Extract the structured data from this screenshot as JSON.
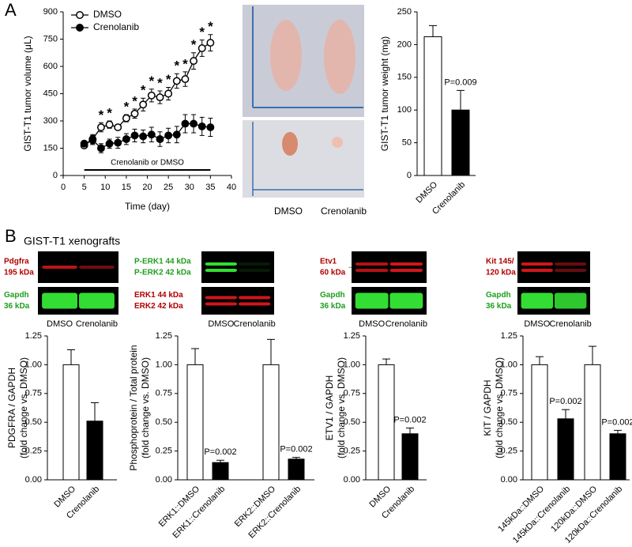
{
  "panels": {
    "a": "A",
    "b": "B",
    "b_title": "GIST-T1 xenografts"
  },
  "photos": {
    "lanes": [
      "DMSO",
      "Crenolanib"
    ]
  },
  "blots": [
    {
      "rows": [
        {
          "labels": [
            "Pdgfra",
            "195 kDa"
          ],
          "color": "#d0161a",
          "label_color": "#b00000"
        },
        {
          "labels": [
            "Gapdh",
            "36 kDa"
          ],
          "color": "#33dd33",
          "label_color": "#1f9e1f"
        }
      ],
      "lanes": [
        "DMSO",
        "Crenolanib"
      ]
    },
    {
      "rows": [
        {
          "labels": [
            "P-ERK1 44 kDa",
            "P-ERK2 42 kDa"
          ],
          "color": "#33dd33",
          "label_color": "#1f9e1f"
        },
        {
          "labels": [
            "ERK1 44 kDa",
            "ERK2 42 kDa"
          ],
          "color": "#d0161a",
          "label_color": "#b00000"
        }
      ],
      "lanes": [
        "DMSO",
        "Crenolanib"
      ]
    },
    {
      "rows": [
        {
          "labels": [
            "Etv1",
            "60 kDa"
          ],
          "color": "#d0161a",
          "label_color": "#b00000"
        },
        {
          "labels": [
            "Gapdh",
            "36 kDa"
          ],
          "color": "#33dd33",
          "label_color": "#1f9e1f"
        }
      ],
      "lanes": [
        "DMSO",
        "Crenolanib"
      ]
    },
    {
      "rows": [
        {
          "labels": [
            "Kit 145/",
            "120 kDa"
          ],
          "color": "#d0161a",
          "label_color": "#b00000"
        },
        {
          "labels": [
            "Gapdh",
            "36 kDa"
          ],
          "color": "#33dd33",
          "label_color": "#1f9e1f"
        }
      ],
      "lanes": [
        "DMSO",
        "Crenolanib"
      ]
    }
  ],
  "chart_data": [
    {
      "type": "line",
      "xlabel": "Time (day)",
      "ylabel": [
        "GIST-T1 tumor volume (μL)"
      ],
      "x": [
        5,
        7,
        9,
        11,
        13,
        15,
        17,
        19,
        21,
        23,
        25,
        27,
        29,
        31,
        33,
        35
      ],
      "series": [
        {
          "name": "DMSO",
          "color": "#000000",
          "marker_fill": "#ffffff",
          "values": [
            165,
            200,
            265,
            280,
            265,
            315,
            340,
            390,
            440,
            430,
            450,
            520,
            530,
            630,
            700,
            730
          ],
          "errors": [
            15,
            25,
            25,
            20,
            15,
            20,
            25,
            35,
            35,
            35,
            35,
            40,
            40,
            45,
            45,
            45
          ],
          "significance": [
            null,
            null,
            "*",
            "*",
            null,
            "*",
            "*",
            "*",
            "*",
            "*",
            "*",
            "*",
            "*",
            "*",
            "*",
            "*"
          ]
        },
        {
          "name": "Crenolanib",
          "color": "#000000",
          "marker_fill": "#000000",
          "values": [
            175,
            195,
            150,
            175,
            180,
            200,
            220,
            215,
            225,
            200,
            220,
            225,
            285,
            285,
            270,
            265
          ],
          "errors": [
            15,
            25,
            25,
            25,
            30,
            30,
            35,
            35,
            40,
            40,
            40,
            45,
            50,
            50,
            50,
            50
          ]
        }
      ],
      "treatment": {
        "label": "Crenolanib or DMSO",
        "range": [
          5,
          35
        ]
      },
      "xlim": [
        0,
        40
      ],
      "xticks": [
        0,
        5,
        10,
        15,
        20,
        25,
        30,
        35,
        40
      ],
      "ylim": [
        0,
        900
      ],
      "yticks": [
        0,
        150,
        300,
        450,
        600,
        750,
        900
      ],
      "legend": "upper-left"
    },
    {
      "type": "bar",
      "ylabel": [
        "GIST-T1 tumor weight (mg)"
      ],
      "categories": [
        "DMSO",
        "Crenolanib"
      ],
      "values": [
        212,
        100
      ],
      "errors": [
        17,
        30
      ],
      "colors": [
        "#ffffff",
        "#000000"
      ],
      "p_values": [
        null,
        "P=0.009"
      ],
      "ylim": [
        0,
        250
      ],
      "yticks": [
        0,
        50,
        100,
        150,
        200,
        250
      ]
    },
    {
      "type": "bar",
      "ylabel": [
        "PDGFRA / GAPDH",
        "(fold change vs. DMSO)"
      ],
      "categories": [
        "DMSO",
        "Crenolanib"
      ],
      "values": [
        1.0,
        0.51
      ],
      "errors": [
        0.13,
        0.16
      ],
      "colors": [
        "#ffffff",
        "#000000"
      ],
      "p_values": [
        null,
        null
      ],
      "ylim": [
        0,
        1.25
      ],
      "yticks": [
        {
          "value": 0,
          "label": "0.00"
        },
        {
          "value": 0.25,
          "label": "0.25"
        },
        {
          "value": 0.5,
          "label": "0.50"
        },
        {
          "value": 0.75,
          "label": "0.75"
        },
        {
          "value": 1,
          "label": "1.00"
        },
        {
          "value": 1.25,
          "label": "1.25"
        }
      ]
    },
    {
      "type": "bar",
      "ylabel": [
        "Phosphoprotein / Total protein",
        "(fold change vs. DMSO)"
      ],
      "categories": [
        "ERK1::DMSO",
        "ERK1::Crenolanib",
        "ERK2::DMSO",
        "ERK2::Crenolanib"
      ],
      "values": [
        1.0,
        0.15,
        1.0,
        0.18
      ],
      "errors": [
        0.14,
        0.02,
        0.22,
        0.015
      ],
      "colors": [
        "#ffffff",
        "#000000",
        "#ffffff",
        "#000000"
      ],
      "p_values": [
        null,
        "P=0.002",
        null,
        "P=0.002"
      ],
      "ylim": [
        0,
        1.25
      ],
      "yticks": [
        {
          "value": 0,
          "label": "0.00"
        },
        {
          "value": 0.25,
          "label": "0.25"
        },
        {
          "value": 0.5,
          "label": "0.50"
        },
        {
          "value": 0.75,
          "label": "0.75"
        },
        {
          "value": 1,
          "label": "1.00"
        },
        {
          "value": 1.25,
          "label": "1.25"
        }
      ]
    },
    {
      "type": "bar",
      "ylabel": [
        "ETV1 / GAPDH",
        "(fold change vs. DMSO)"
      ],
      "categories": [
        "DMSO",
        "Crenolanib"
      ],
      "values": [
        1.0,
        0.4
      ],
      "errors": [
        0.05,
        0.05
      ],
      "colors": [
        "#ffffff",
        "#000000"
      ],
      "p_values": [
        null,
        "P=0.002"
      ],
      "ylim": [
        0,
        1.25
      ],
      "yticks": [
        {
          "value": 0,
          "label": "0.00"
        },
        {
          "value": 0.25,
          "label": "0.25"
        },
        {
          "value": 0.5,
          "label": "0.50"
        },
        {
          "value": 0.75,
          "label": "0.75"
        },
        {
          "value": 1,
          "label": "1.00"
        },
        {
          "value": 1.25,
          "label": "1.25"
        }
      ]
    },
    {
      "type": "bar",
      "ylabel": [
        "KIT / GAPDH",
        "(fold change vs. DMSO)"
      ],
      "categories": [
        "145kDa::DMSO",
        "145kDa::Crenolanib",
        "120kDa::DMSO",
        "120kDa::Crenolanib"
      ],
      "values": [
        1.0,
        0.53,
        1.0,
        0.4
      ],
      "errors": [
        0.07,
        0.08,
        0.16,
        0.03
      ],
      "colors": [
        "#ffffff",
        "#000000",
        "#ffffff",
        "#000000"
      ],
      "p_values": [
        null,
        "P=0.002",
        null,
        "P=0.002"
      ],
      "ylim": [
        0,
        1.25
      ],
      "yticks": [
        {
          "value": 0,
          "label": "0.00"
        },
        {
          "value": 0.25,
          "label": "0.25"
        },
        {
          "value": 0.5,
          "label": "0.50"
        },
        {
          "value": 0.75,
          "label": "0.75"
        },
        {
          "value": 1,
          "label": "1.00"
        },
        {
          "value": 1.25,
          "label": "1.25"
        }
      ]
    }
  ]
}
